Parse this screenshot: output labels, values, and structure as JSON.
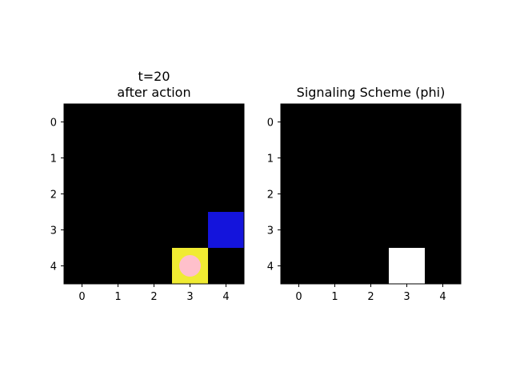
{
  "panels": [
    {
      "title_line1": "t=20",
      "title_line2": "after action",
      "grid_size": 5,
      "background": "#000000",
      "cells": [
        {
          "row": 3,
          "col": 4,
          "color": "#1414DC",
          "name": "blue-agent-cell"
        },
        {
          "row": 4,
          "col": 3,
          "color": "#F0EB32",
          "name": "yellow-target-cell"
        }
      ],
      "markers": [
        {
          "row": 4,
          "col": 3,
          "shape": "circle",
          "color": "#FFC0CB",
          "name": "pink-agent-marker"
        }
      ],
      "xticks": [
        "0",
        "1",
        "2",
        "3",
        "4"
      ],
      "yticks": [
        "0",
        "1",
        "2",
        "3",
        "4"
      ]
    },
    {
      "title_line1": "Signaling Scheme (phi)",
      "title_line2": "",
      "grid_size": 5,
      "background": "#000000",
      "cells": [
        {
          "row": 4,
          "col": 3,
          "color": "#FFFFFF",
          "name": "signal-cell"
        }
      ],
      "markers": [],
      "xticks": [
        "0",
        "1",
        "2",
        "3",
        "4"
      ],
      "yticks": [
        "0",
        "1",
        "2",
        "3",
        "4"
      ]
    }
  ]
}
